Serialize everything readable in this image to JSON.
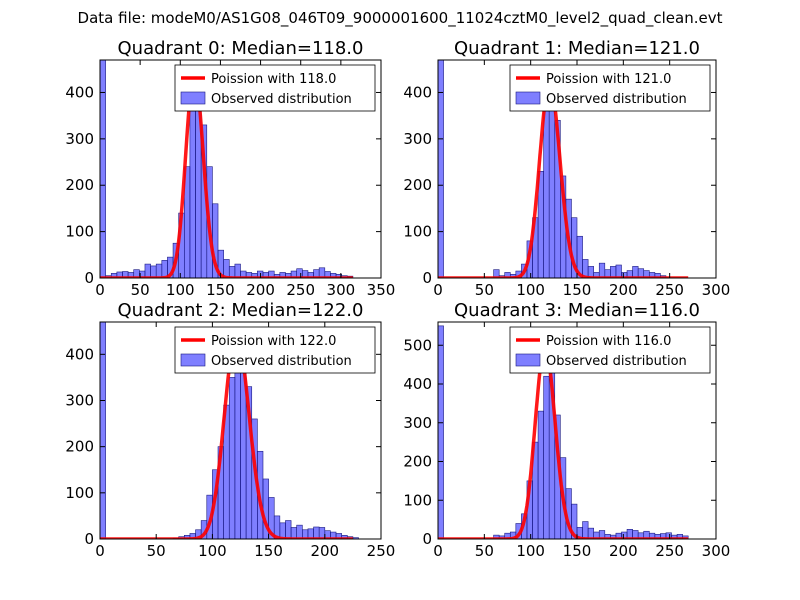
{
  "figure_title": "Data file: modeM0/AS1G08_046T09_9000001600_11024cztM0_level2_quad_clean.evt",
  "chart_data": [
    {
      "type": "bar",
      "title": "Quadrant 0: Median=118.0",
      "median": 118,
      "xlim": [
        0,
        350
      ],
      "ylim": [
        0,
        470
      ],
      "xticks": [
        0,
        50,
        100,
        150,
        200,
        250,
        300,
        350
      ],
      "yticks": [
        0,
        100,
        200,
        300,
        400
      ],
      "bin_width": 7,
      "legend": {
        "line": "Poission with 118.0",
        "bars": "Observed distribution"
      },
      "bins": [
        [
          0,
          470
        ],
        [
          7,
          5
        ],
        [
          14,
          10
        ],
        [
          21,
          13
        ],
        [
          28,
          14
        ],
        [
          35,
          12
        ],
        [
          42,
          18
        ],
        [
          49,
          15
        ],
        [
          56,
          30
        ],
        [
          63,
          26
        ],
        [
          70,
          30
        ],
        [
          77,
          38
        ],
        [
          84,
          45
        ],
        [
          91,
          75
        ],
        [
          98,
          140
        ],
        [
          105,
          240
        ],
        [
          112,
          360
        ],
        [
          119,
          420
        ],
        [
          126,
          330
        ],
        [
          133,
          240
        ],
        [
          140,
          160
        ],
        [
          147,
          60
        ],
        [
          154,
          40
        ],
        [
          161,
          25
        ],
        [
          168,
          30
        ],
        [
          175,
          15
        ],
        [
          182,
          12
        ],
        [
          189,
          10
        ],
        [
          196,
          15
        ],
        [
          203,
          12
        ],
        [
          210,
          15
        ],
        [
          217,
          8
        ],
        [
          224,
          12
        ],
        [
          231,
          10
        ],
        [
          238,
          15
        ],
        [
          245,
          20
        ],
        [
          252,
          16
        ],
        [
          259,
          12
        ],
        [
          266,
          18
        ],
        [
          273,
          22
        ],
        [
          280,
          14
        ],
        [
          287,
          10
        ],
        [
          294,
          8
        ],
        [
          301,
          5
        ],
        [
          308,
          4
        ]
      ]
    },
    {
      "type": "bar",
      "title": "Quadrant 1: Median=121.0",
      "median": 121,
      "xlim": [
        0,
        300
      ],
      "ylim": [
        0,
        470
      ],
      "xticks": [
        0,
        50,
        100,
        150,
        200,
        250,
        300
      ],
      "yticks": [
        0,
        100,
        200,
        300,
        400
      ],
      "bin_width": 6,
      "legend": {
        "line": "Poission with 121.0",
        "bars": "Observed distribution"
      },
      "bins": [
        [
          0,
          470
        ],
        [
          60,
          18
        ],
        [
          66,
          5
        ],
        [
          72,
          12
        ],
        [
          78,
          8
        ],
        [
          84,
          15
        ],
        [
          90,
          30
        ],
        [
          96,
          80
        ],
        [
          102,
          130
        ],
        [
          108,
          230
        ],
        [
          114,
          360
        ],
        [
          120,
          400
        ],
        [
          126,
          340
        ],
        [
          132,
          220
        ],
        [
          138,
          170
        ],
        [
          144,
          130
        ],
        [
          150,
          90
        ],
        [
          156,
          40
        ],
        [
          162,
          25
        ],
        [
          168,
          12
        ],
        [
          174,
          32
        ],
        [
          180,
          18
        ],
        [
          186,
          25
        ],
        [
          192,
          28
        ],
        [
          198,
          12
        ],
        [
          204,
          16
        ],
        [
          210,
          25
        ],
        [
          216,
          20
        ],
        [
          222,
          16
        ],
        [
          228,
          12
        ],
        [
          234,
          10
        ],
        [
          240,
          5
        ]
      ]
    },
    {
      "type": "bar",
      "title": "Quadrant 2: Median=122.0",
      "median": 122,
      "xlim": [
        0,
        250
      ],
      "ylim": [
        0,
        470
      ],
      "xticks": [
        0,
        50,
        100,
        150,
        200,
        250
      ],
      "yticks": [
        0,
        100,
        200,
        300,
        400
      ],
      "bin_width": 5,
      "legend": {
        "line": "Poission with 122.0",
        "bars": "Observed distribution"
      },
      "bins": [
        [
          0,
          470
        ],
        [
          65,
          2
        ],
        [
          70,
          5
        ],
        [
          75,
          8
        ],
        [
          80,
          12
        ],
        [
          85,
          20
        ],
        [
          90,
          40
        ],
        [
          95,
          95
        ],
        [
          100,
          150
        ],
        [
          105,
          200
        ],
        [
          110,
          290
        ],
        [
          115,
          350
        ],
        [
          120,
          420
        ],
        [
          125,
          390
        ],
        [
          130,
          330
        ],
        [
          135,
          260
        ],
        [
          140,
          190
        ],
        [
          145,
          130
        ],
        [
          150,
          90
        ],
        [
          155,
          50
        ],
        [
          160,
          35
        ],
        [
          165,
          40
        ],
        [
          170,
          25
        ],
        [
          175,
          30
        ],
        [
          180,
          20
        ],
        [
          185,
          22
        ],
        [
          190,
          26
        ],
        [
          195,
          25
        ],
        [
          200,
          18
        ],
        [
          205,
          15
        ],
        [
          210,
          12
        ],
        [
          215,
          8
        ],
        [
          220,
          5
        ],
        [
          225,
          3
        ]
      ]
    },
    {
      "type": "bar",
      "title": "Quadrant 3: Median=116.0",
      "median": 116,
      "xlim": [
        0,
        300
      ],
      "ylim": [
        0,
        560
      ],
      "xticks": [
        0,
        50,
        100,
        150,
        200,
        250,
        300
      ],
      "yticks": [
        0,
        100,
        200,
        300,
        400,
        500
      ],
      "bin_width": 6,
      "legend": {
        "line": "Poission with 116.0",
        "bars": "Observed distribution"
      },
      "bins": [
        [
          0,
          550
        ],
        [
          60,
          10
        ],
        [
          66,
          8
        ],
        [
          72,
          15
        ],
        [
          78,
          18
        ],
        [
          84,
          40
        ],
        [
          90,
          65
        ],
        [
          96,
          150
        ],
        [
          102,
          250
        ],
        [
          108,
          330
        ],
        [
          114,
          420
        ],
        [
          120,
          470
        ],
        [
          126,
          320
        ],
        [
          132,
          210
        ],
        [
          138,
          130
        ],
        [
          144,
          90
        ],
        [
          150,
          30
        ],
        [
          156,
          45
        ],
        [
          162,
          28
        ],
        [
          168,
          18
        ],
        [
          174,
          22
        ],
        [
          180,
          12
        ],
        [
          186,
          10
        ],
        [
          192,
          15
        ],
        [
          198,
          18
        ],
        [
          204,
          25
        ],
        [
          210,
          22
        ],
        [
          216,
          16
        ],
        [
          222,
          20
        ],
        [
          228,
          15
        ],
        [
          234,
          12
        ],
        [
          240,
          14
        ],
        [
          246,
          16
        ],
        [
          252,
          10
        ],
        [
          258,
          12
        ],
        [
          264,
          8
        ]
      ]
    }
  ]
}
